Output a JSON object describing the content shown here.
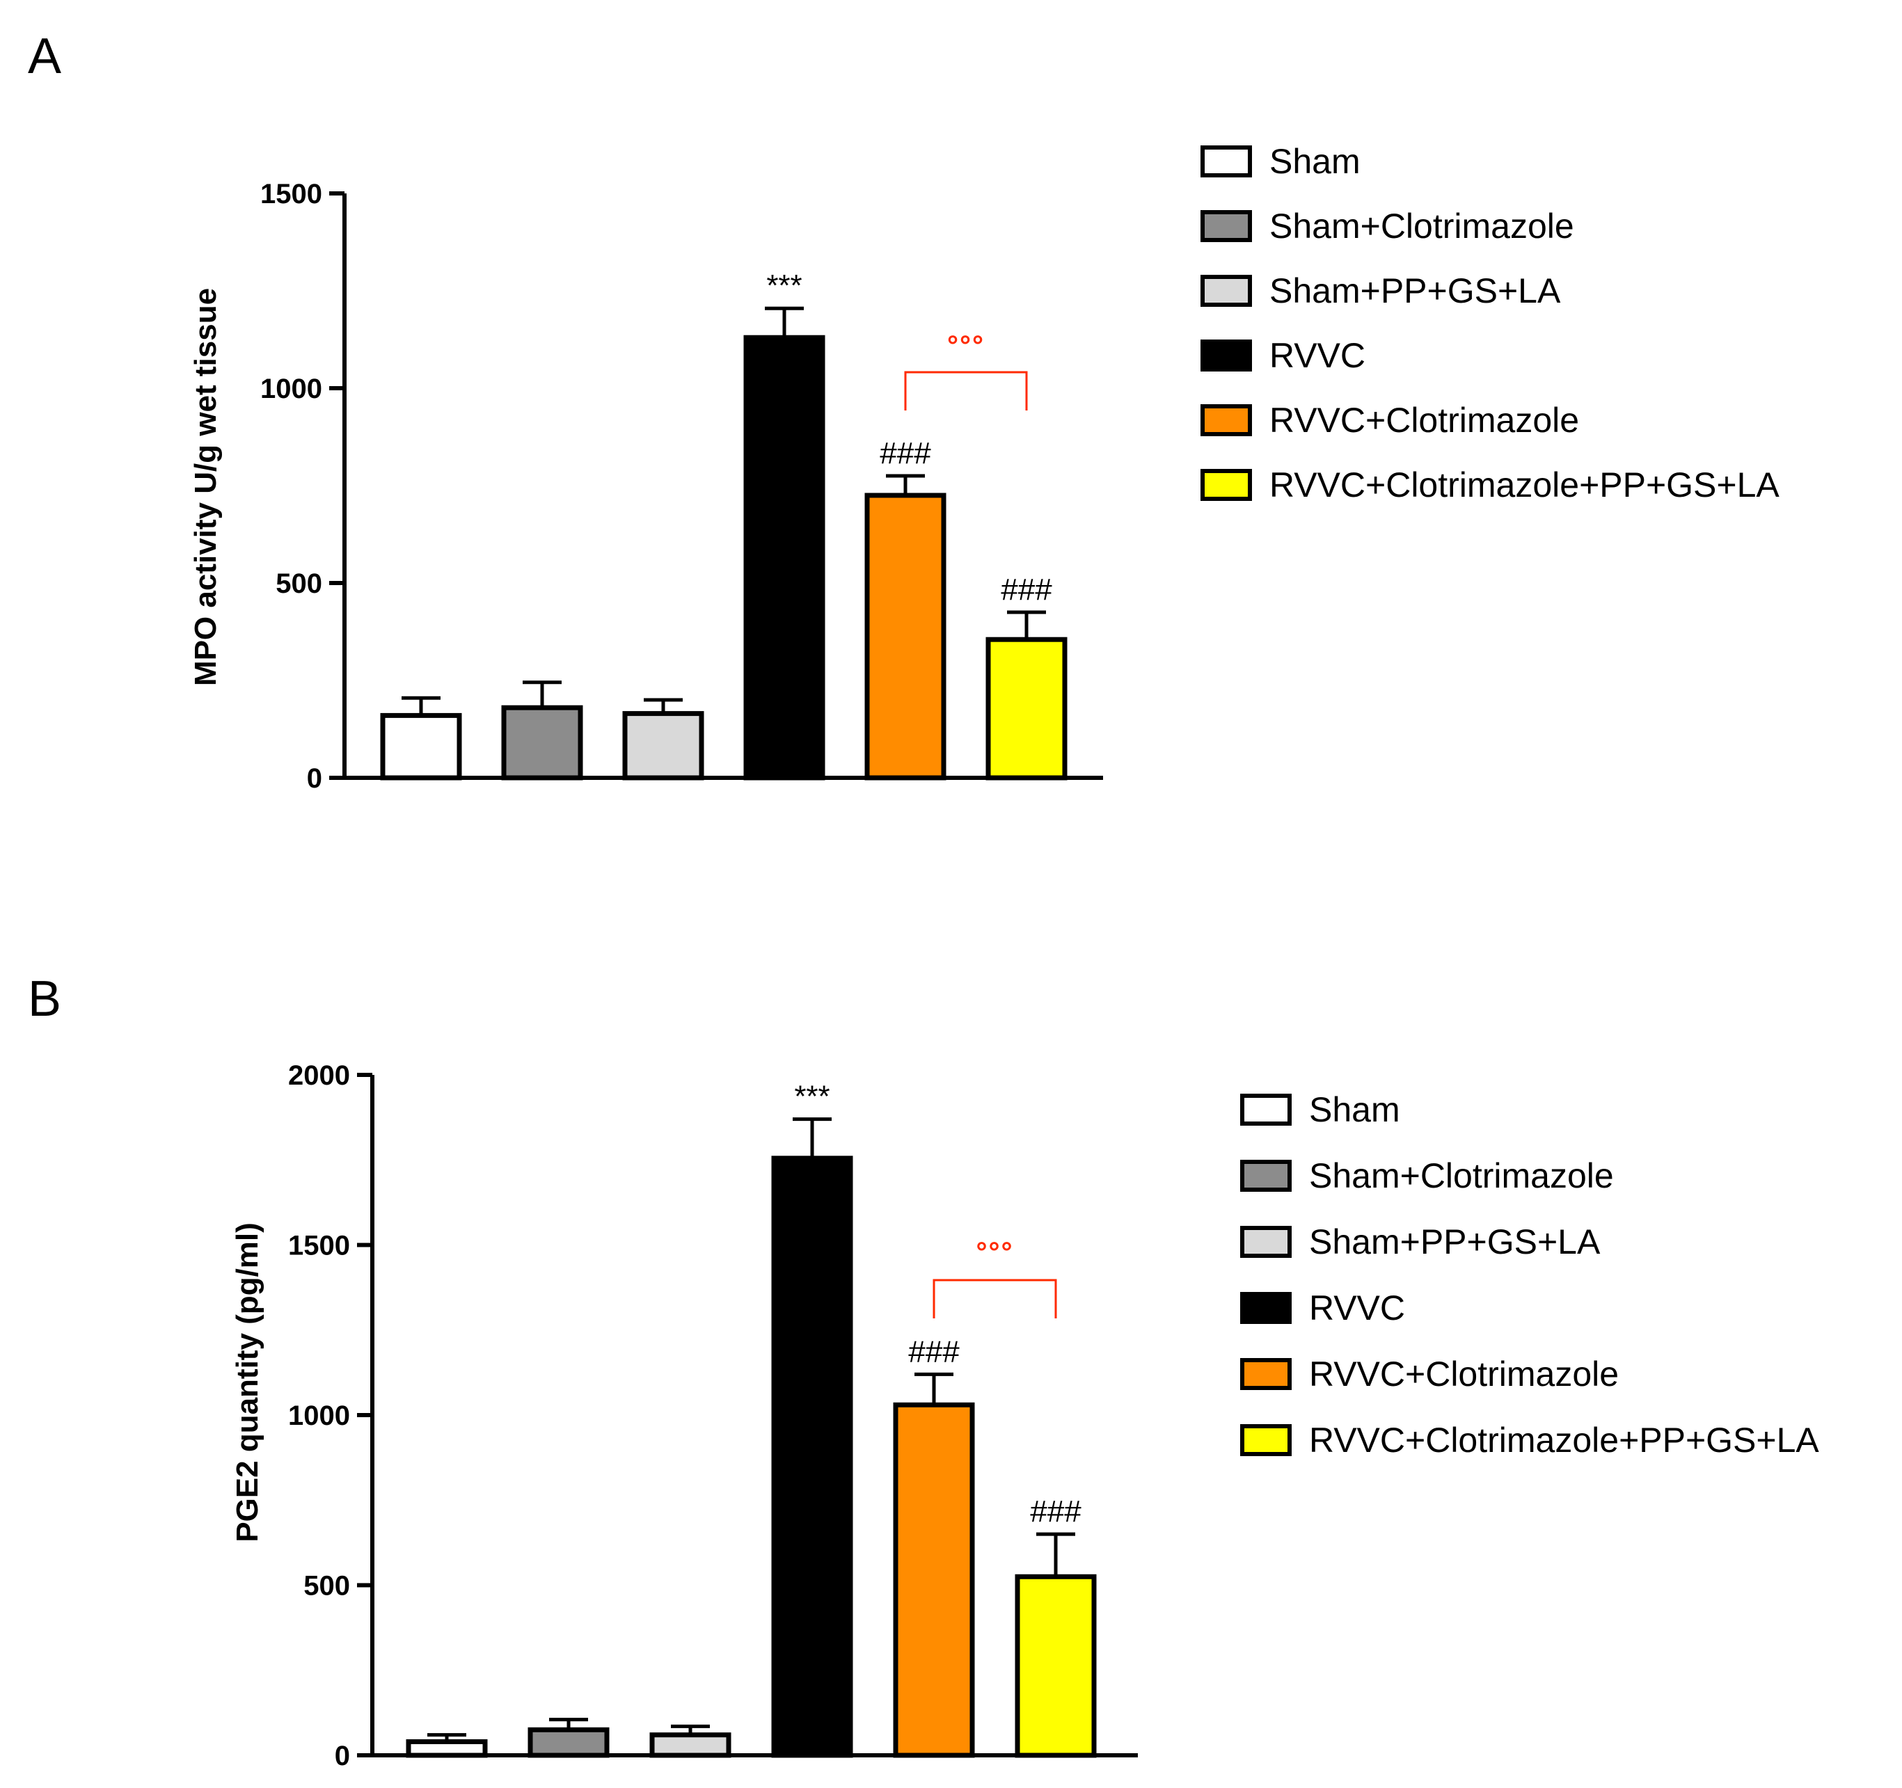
{
  "colors": {
    "sham": "#ffffff",
    "sham_clotrimazole": "#8c8c8c",
    "sham_pp_gs_la": "#d9d9d9",
    "rvvc": "#000000",
    "rvvc_clotrimazole": "#ff8c00",
    "rvvc_clotrimazole_pp_gs_la": "#ffff00",
    "bracket": "#ff2a00"
  },
  "chart_data": [
    {
      "panel": "A",
      "type": "bar",
      "ylabel": "MPO activity U/g wet tissue",
      "xlabel": "",
      "ylim": [
        0,
        1500
      ],
      "yticks": [
        0,
        500,
        1000,
        1500
      ],
      "categories": [
        "Sham",
        "Sham+Clotrimazole",
        "Sham+PP+GS+LA",
        "RVVC",
        "RVVC+Clotrimazole",
        "RVVC+Clotrimazole+PP+GS+LA"
      ],
      "values": [
        160,
        180,
        165,
        1130,
        725,
        355
      ],
      "errors": [
        45,
        65,
        35,
        75,
        50,
        70
      ],
      "annotations": [
        "",
        "",
        "",
        "***",
        "###",
        "###"
      ],
      "bracket": {
        "from": 4,
        "to": 5,
        "label": "°°°"
      },
      "legend": [
        "Sham",
        "Sham+Clotrimazole",
        "Sham+PP+GS+LA",
        "RVVC",
        "RVVC+Clotrimazole",
        "RVVC+Clotrimazole+PP+GS+LA"
      ]
    },
    {
      "panel": "B",
      "type": "bar",
      "ylabel": "PGE2 quantity (pg/ml)",
      "xlabel": "",
      "ylim": [
        0,
        2000
      ],
      "yticks": [
        0,
        500,
        1000,
        1500,
        2000
      ],
      "categories": [
        "Sham",
        "Sham+Clotrimazole",
        "Sham+PP+GS+LA",
        "RVVC",
        "RVVC+Clotrimazole",
        "RVVC+Clotrimazole+PP+GS+LA"
      ],
      "values": [
        40,
        75,
        60,
        1755,
        1030,
        525
      ],
      "errors": [
        20,
        30,
        25,
        115,
        90,
        125
      ],
      "annotations": [
        "",
        "",
        "",
        "***",
        "###",
        "###"
      ],
      "bracket": {
        "from": 4,
        "to": 5,
        "label": "°°°"
      },
      "legend": [
        "Sham",
        "Sham+Clotrimazole",
        "Sham+PP+GS+LA",
        "RVVC",
        "RVVC+Clotrimazole",
        "RVVC+Clotrimazole+PP+GS+LA"
      ]
    }
  ]
}
